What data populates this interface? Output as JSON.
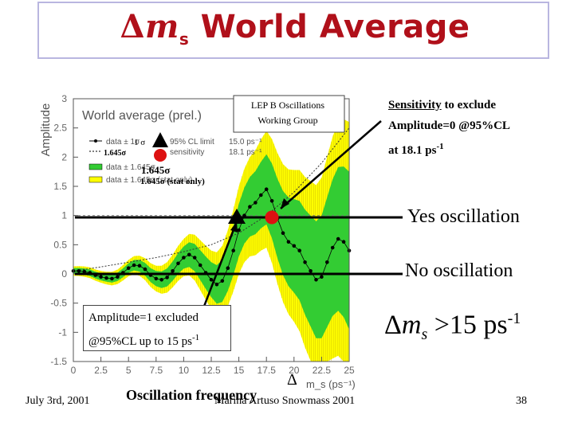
{
  "slide": {
    "title_symbol": "Δ",
    "title_ms": "m",
    "title_sub": "s",
    "title_text": "World Average",
    "sensitivity_word": "Sensitivity",
    "sensitivity_rest": " to exclude",
    "sensitivity_line2": "Amplitude=0 @95%CL",
    "sensitivity_line3": "at 18.1 ps",
    "sensitivity_exp": "-1",
    "yes_label": "Yes oscillation",
    "no_label": "No oscillation",
    "excl_line1": "Amplitude=1 excluded",
    "excl_line2": "@95%CL up to 15 ps",
    "excl_exp": "-1",
    "result_delta": "Δ",
    "result_m": "m",
    "result_sub": "s",
    "result_rest": " >15 ps",
    "result_exp": "-1",
    "lep_line1": "LEP B Oscillations",
    "lep_line2": "Working Group",
    "legend_1sigma": "1 σ",
    "legend_1645": "1.645σ",
    "legend_big_1645": "1.645σ",
    "legend_stat": "1.645σ (stat only)",
    "freq_delta": "Δ",
    "freq_label": "Oscillation frequency",
    "date": "July 3rd, 2001",
    "author": "Marina Artuso Snowmass 2001",
    "page": "38",
    "colors": {
      "title": "#b0101a",
      "band_outer": "#ffff00",
      "band_inner": "#33cc33",
      "marker_red": "#dd1111"
    }
  },
  "chart_data": {
    "type": "line",
    "title": "World average (prel.)",
    "ylabel": "Amplitude",
    "xlabel": "m_s (ps⁻¹)",
    "xlim": [
      0,
      25
    ],
    "ylim": [
      -1.5,
      3
    ],
    "x_ticks": [
      "0",
      "2.5",
      "5",
      "7.5",
      "10",
      "12.5",
      "15",
      "17.5",
      "20",
      "22.5",
      "25"
    ],
    "y_ticks": [
      "3",
      "2.5",
      "2",
      "1.5",
      "1",
      "0.5",
      "0",
      "-0.5",
      "-1",
      "-1.5"
    ],
    "legend": [
      {
        "label": "data ± 1σ",
        "value": ""
      },
      {
        "label": "95% CL limit",
        "value": "15.0 ps⁻¹"
      },
      {
        "label": "sensitivity",
        "value": "18.1 ps⁻¹"
      },
      {
        "label": "data ± 1.645σ",
        "value": ""
      },
      {
        "label": "data ± 1.645σ (stat only)",
        "value": ""
      }
    ],
    "series": [
      {
        "name": "data ± 1σ",
        "x": [
          0,
          0.5,
          1,
          1.5,
          2,
          2.5,
          3,
          3.5,
          4,
          4.5,
          5,
          5.5,
          6,
          6.5,
          7,
          7.5,
          8,
          8.5,
          9,
          9.5,
          10,
          10.5,
          11,
          11.5,
          12,
          12.5,
          13,
          13.5,
          14,
          14.5,
          15,
          15.5,
          16,
          16.5,
          17,
          17.5,
          18,
          18.5,
          19,
          19.5,
          20,
          20.5,
          21,
          21.5,
          22,
          22.5,
          23,
          23.5,
          24,
          24.5,
          25
        ],
        "y": [
          0.05,
          0.05,
          0.04,
          0.02,
          -0.02,
          -0.05,
          -0.07,
          -0.08,
          -0.05,
          0.02,
          0.1,
          0.15,
          0.14,
          0.08,
          -0.02,
          -0.08,
          -0.1,
          -0.06,
          0.05,
          0.18,
          0.28,
          0.33,
          0.28,
          0.15,
          0.02,
          -0.1,
          -0.18,
          -0.12,
          0.1,
          0.4,
          0.75,
          1.0,
          1.15,
          1.22,
          1.35,
          1.45,
          1.25,
          0.95,
          0.7,
          0.55,
          0.48,
          0.4,
          0.2,
          0.05,
          -0.1,
          -0.05,
          0.2,
          0.45,
          0.6,
          0.55,
          0.4
        ]
      }
    ],
    "sensitivity_curve": {
      "x": [
        0,
        2.5,
        5,
        7.5,
        10,
        12.5,
        15,
        17.5,
        20,
        22.5,
        25
      ],
      "y": [
        0.05,
        0.12,
        0.2,
        0.28,
        0.38,
        0.5,
        0.7,
        1.0,
        1.4,
        1.9,
        2.5
      ]
    },
    "band_1645_halfwidth": {
      "x": [
        0,
        2.5,
        5,
        7.5,
        10,
        12.5,
        15,
        17.5,
        20,
        22.5,
        25
      ],
      "y": [
        0.08,
        0.1,
        0.14,
        0.22,
        0.32,
        0.5,
        0.75,
        1.0,
        1.3,
        1.7,
        2.2
      ]
    },
    "band_1sigma_halfwidth": {
      "x": [
        0,
        2.5,
        5,
        7.5,
        10,
        12.5,
        15,
        17.5,
        20,
        22.5,
        25
      ],
      "y": [
        0.05,
        0.06,
        0.08,
        0.13,
        0.19,
        0.3,
        0.45,
        0.6,
        0.8,
        1.05,
        1.35
      ]
    },
    "limit_95cl": 15.0,
    "sensitivity": 18.1
  }
}
